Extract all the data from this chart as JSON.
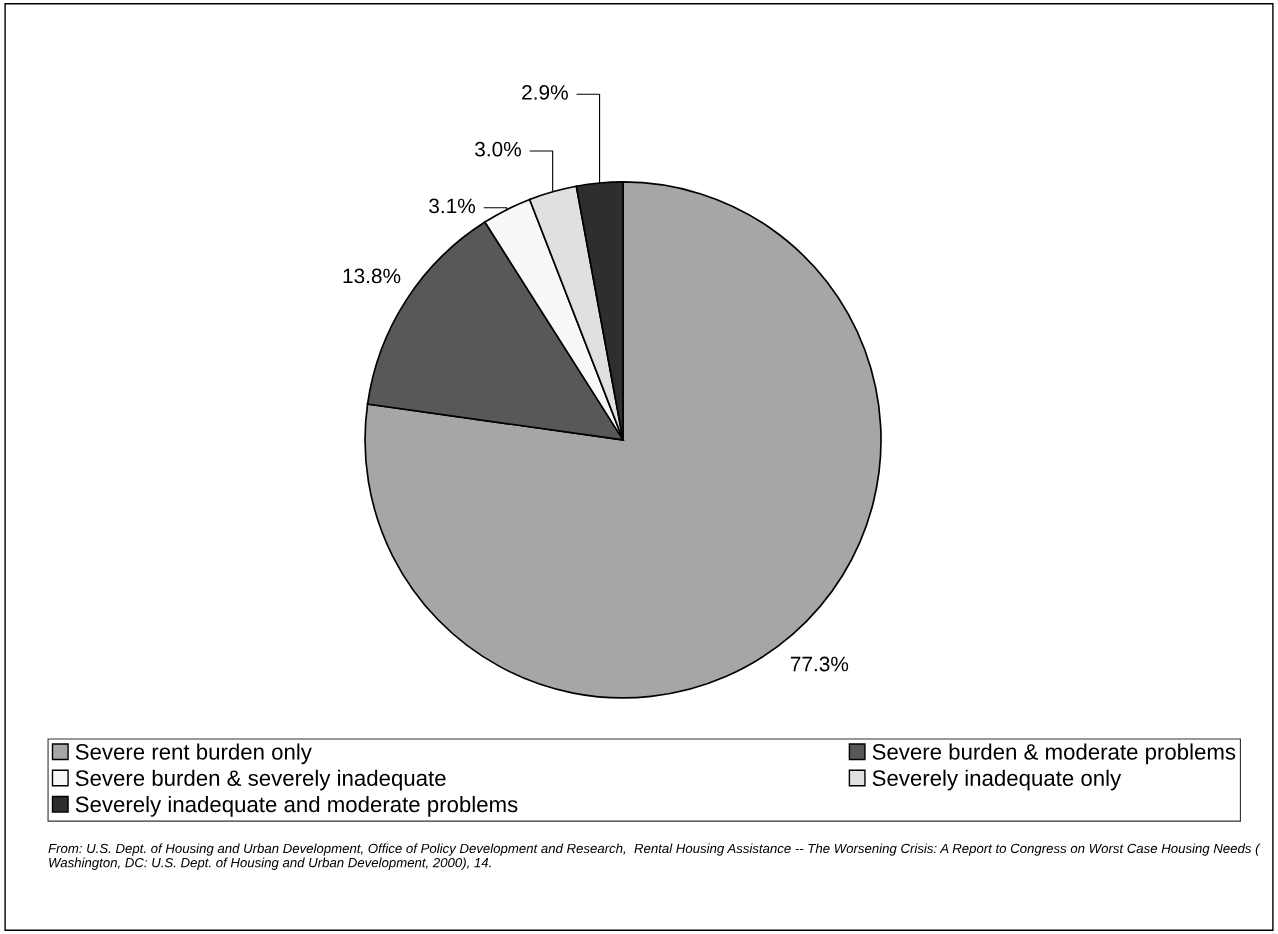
{
  "chart_data": {
    "type": "pie",
    "categories": [
      "Severe rent burden only",
      "Severe burden & moderate problems",
      "Severe burden & severely inadequate",
      "Severely inadequate only",
      "Severely inadequate and moderate problems"
    ],
    "values": [
      77.3,
      13.8,
      3.1,
      3.0,
      2.9
    ],
    "value_labels": [
      "77.3%",
      "13.8%",
      "3.1%",
      "3.0%",
      "2.9%"
    ],
    "colors": [
      "#a6a6a6",
      "#585858",
      "#f8f8f8",
      "#e0e0e0",
      "#2e2e2e"
    ],
    "legend": "bottom",
    "annotations": [
      "From: U.S. Dept. of Housing and Urban Development, Office of Policy Development and Research,  Rental Housing Assistance -- The Worsening Crisis: A Report to Congress on Worst Case Housing Needs ( Washington, DC: U.S. Dept. of Housing and Urban Development, 2000), 14."
    ]
  }
}
